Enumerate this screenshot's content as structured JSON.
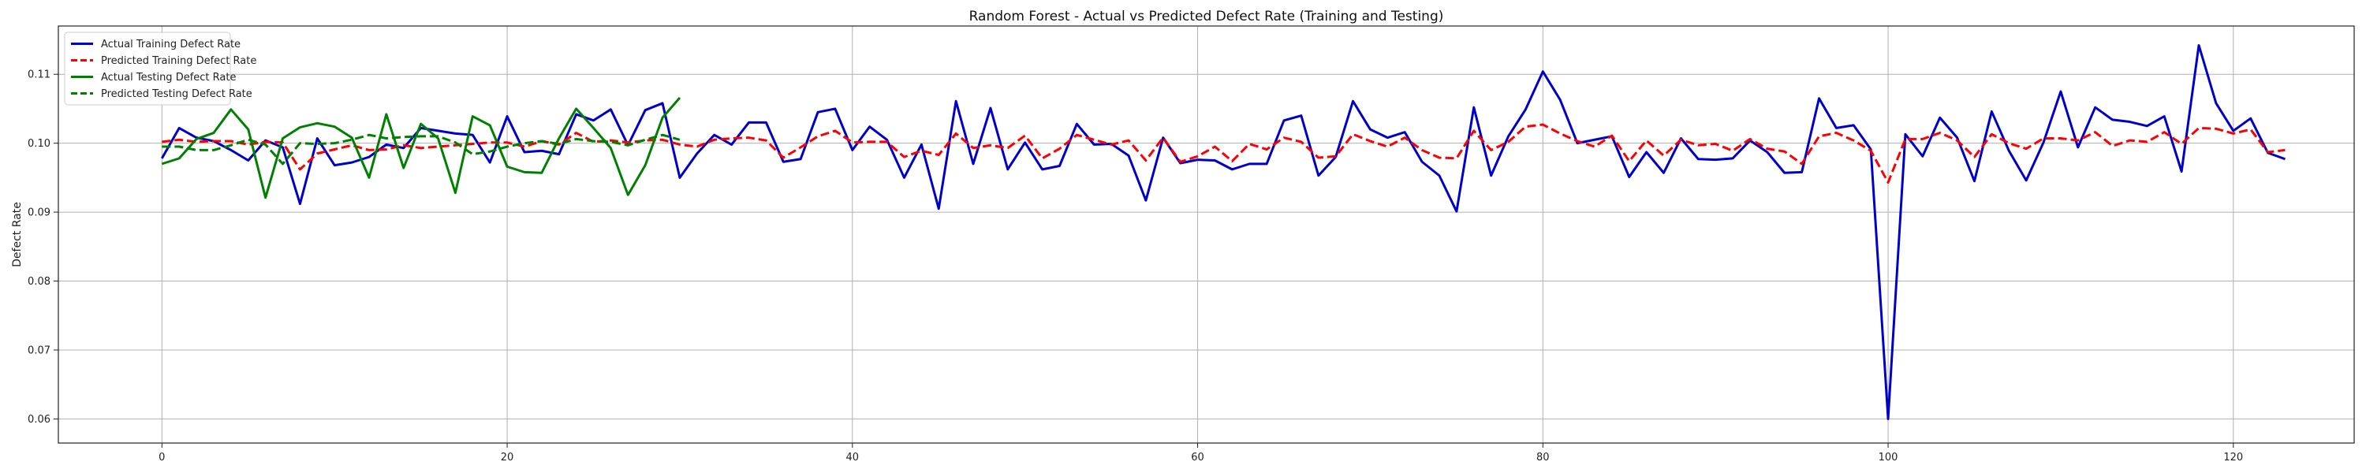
{
  "chart_data": {
    "type": "line",
    "title": "Random Forest - Actual vs Predicted Defect Rate (Training and Testing)",
    "xlabel": "",
    "ylabel": "Defect Rate",
    "xlim": [
      -6,
      127
    ],
    "ylim": [
      0.0565,
      0.117
    ],
    "xticks": [
      0,
      20,
      40,
      60,
      80,
      100,
      120
    ],
    "yticks": [
      0.06,
      0.07,
      0.08,
      0.09,
      0.1,
      0.11
    ],
    "xtick_labels": [
      "0",
      "20",
      "40",
      "60",
      "80",
      "100",
      "120"
    ],
    "ytick_labels": [
      "0.06",
      "0.07",
      "0.08",
      "0.09",
      "0.10",
      "0.11"
    ],
    "grid": true,
    "legend_position": "top-left",
    "series": [
      {
        "name": "Actual Training Defect Rate",
        "color": "#0000cc",
        "style": "solid",
        "x_start": 0,
        "values": [
          0.0978,
          0.1022,
          0.1008,
          0.1003,
          0.099,
          0.0975,
          0.1004,
          0.0994,
          0.0912,
          0.1007,
          0.0968,
          0.0972,
          0.098,
          0.0998,
          0.0993,
          0.1022,
          0.1018,
          0.1014,
          0.1012,
          0.0972,
          0.1039,
          0.0987,
          0.0989,
          0.0984,
          0.1042,
          0.1033,
          0.1049,
          0.0997,
          0.1048,
          0.1058,
          0.095,
          0.0985,
          0.1012,
          0.0998,
          0.103,
          0.103,
          0.0973,
          0.0977,
          0.1045,
          0.105,
          0.099,
          0.1024,
          0.1005,
          0.095,
          0.0998,
          0.0905,
          0.1061,
          0.097,
          0.1051,
          0.0962,
          0.1001,
          0.0962,
          0.0967,
          0.1028,
          0.0998,
          0.0999,
          0.0982,
          0.0917,
          0.1008,
          0.0971,
          0.0976,
          0.0975,
          0.0962,
          0.097,
          0.097,
          0.1033,
          0.104,
          0.0953,
          0.098,
          0.1061,
          0.102,
          0.1008,
          0.1016,
          0.0973,
          0.0953,
          0.0901,
          0.1052,
          0.0953,
          0.101,
          0.1049,
          0.1104,
          0.1063,
          0.1,
          0.1005,
          0.101,
          0.0951,
          0.0987,
          0.0957,
          0.1007,
          0.0977,
          0.0976,
          0.0978,
          0.1004,
          0.0987,
          0.0957,
          0.0958,
          0.1065,
          0.1022,
          0.1026,
          0.0991,
          0.06,
          0.1013,
          0.0981,
          0.1037,
          0.1008,
          0.0945,
          0.1046,
          0.0989,
          0.0946,
          0.1001,
          0.1075,
          0.0994,
          0.1052,
          0.1034,
          0.1031,
          0.1025,
          0.1039,
          0.0959,
          0.1142,
          0.1058,
          0.1018,
          0.1036,
          0.0986,
          0.0977
        ]
      },
      {
        "name": "Predicted Training Defect Rate",
        "color": "#ff0000",
        "style": "dashed",
        "x_start": 0,
        "values": [
          0.1002,
          0.1005,
          0.1002,
          0.1003,
          0.1003,
          0.0998,
          0.1002,
          0.1001,
          0.0962,
          0.0985,
          0.0991,
          0.0997,
          0.099,
          0.0991,
          0.0997,
          0.0993,
          0.0995,
          0.0997,
          0.0999,
          0.1001,
          0.1001,
          0.0995,
          0.1003,
          0.0998,
          0.1015,
          0.1002,
          0.1004,
          0.1001,
          0.1004,
          0.1005,
          0.0998,
          0.0995,
          0.1005,
          0.1007,
          0.1008,
          0.1004,
          0.0979,
          0.0994,
          0.101,
          0.1018,
          0.1001,
          0.1002,
          0.1002,
          0.098,
          0.0989,
          0.0983,
          0.1014,
          0.0993,
          0.0997,
          0.0993,
          0.1011,
          0.0978,
          0.0992,
          0.1012,
          0.1005,
          0.0998,
          0.1004,
          0.0975,
          0.1008,
          0.0973,
          0.0981,
          0.0995,
          0.0974,
          0.0999,
          0.0991,
          0.1008,
          0.1002,
          0.0979,
          0.0981,
          0.1013,
          0.1003,
          0.0995,
          0.1008,
          0.099,
          0.0979,
          0.0978,
          0.1018,
          0.099,
          0.1002,
          0.1024,
          0.1027,
          0.1014,
          0.1003,
          0.0995,
          0.1011,
          0.0974,
          0.1004,
          0.0982,
          0.1005,
          0.0997,
          0.0999,
          0.0989,
          0.1006,
          0.0992,
          0.0988,
          0.097,
          0.101,
          0.1015,
          0.1004,
          0.0989,
          0.0943,
          0.1006,
          0.1006,
          0.1015,
          0.1004,
          0.098,
          0.1013,
          0.1,
          0.0992,
          0.1007,
          0.1007,
          0.1004,
          0.1016,
          0.0996,
          0.1004,
          0.1002,
          0.1016,
          0.0999,
          0.1022,
          0.1021,
          0.1014,
          0.102,
          0.0987,
          0.099
        ]
      },
      {
        "name": "Actual Testing Defect Rate",
        "color": "#008000",
        "style": "solid",
        "x_start": 0,
        "values": [
          0.097,
          0.0978,
          0.1006,
          0.1015,
          0.1049,
          0.102,
          0.0921,
          0.1007,
          0.1023,
          0.1029,
          0.1024,
          0.1008,
          0.095,
          0.1042,
          0.0964,
          0.1028,
          0.1007,
          0.0928,
          0.1039,
          0.1026,
          0.0966,
          0.0958,
          0.0957,
          0.1007,
          0.105,
          0.1022,
          0.0993,
          0.0925,
          0.0968,
          0.1037,
          0.1066
        ]
      },
      {
        "name": "Predicted Testing Defect Rate",
        "color": "#008000",
        "style": "dashed",
        "x_start": 0,
        "values": [
          0.0995,
          0.0995,
          0.099,
          0.099,
          0.0997,
          0.1005,
          0.0998,
          0.097,
          0.1,
          0.0999,
          0.1,
          0.1005,
          0.1012,
          0.1007,
          0.1009,
          0.101,
          0.101,
          0.1001,
          0.0984,
          0.0988,
          0.0995,
          0.1,
          0.1003,
          0.0999,
          0.1006,
          0.1003,
          0.1002,
          0.0997,
          0.1005,
          0.1012,
          0.1005
        ]
      }
    ]
  }
}
